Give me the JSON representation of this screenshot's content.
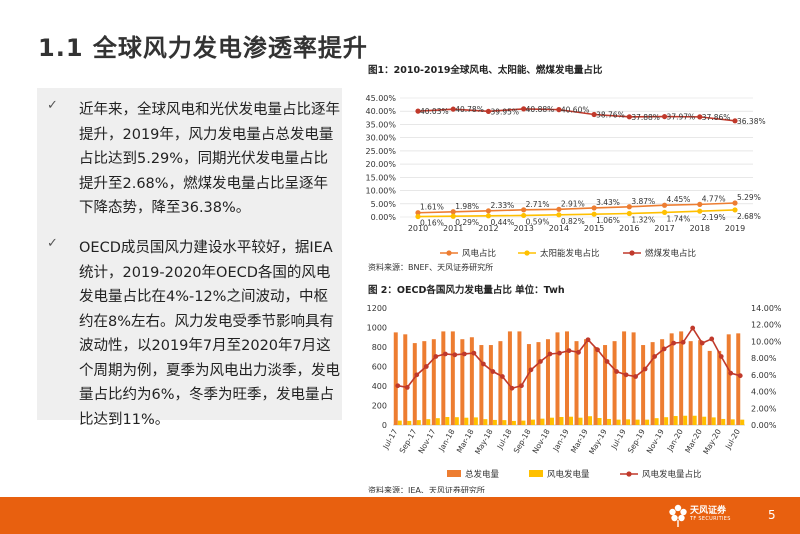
{
  "slide": {
    "title": "1.1 全球风力发电渗透率提升",
    "page_number": "5",
    "logo_text": "天风证券",
    "logo_sub": "TF SECURITIES"
  },
  "bullets": [
    {
      "mark": "✓",
      "text": "近年来，全球风电和光伏发电量占比逐年提升，2019年，风力发电量占总发电量占比达到5.29%，同期光伏发电量占比提升至2.68%，燃煤发电量占比呈逐年下降态势，降至36.38%。"
    },
    {
      "mark": "✓",
      "text": "OECD成员国风力建设水平较好，据IEA统计，2019-2020年OECD各国的风电发电量占比在4%-12%之间波动，中枢约在8%左右。风力发电受季节影响具有波动性，以2019年7月至2020年7月这个周期为例，夏季为风电出力淡季，发电量占比约为6%，冬季为旺季，发电量占比达到11%。"
    }
  ],
  "figure1": {
    "title": "图1：2010-2019全球风电、太阳能、燃煤发电量占比",
    "source": "资料来源：BNEF、天风证券研究所"
  },
  "figure2": {
    "title": "图 2：OECD各国风力发电量占比 单位：Twh",
    "source": "资料来源：IEA、天风证券研究所"
  },
  "chart_data": [
    {
      "type": "line",
      "x": [
        "2010",
        "2011",
        "2012",
        "2013",
        "2014",
        "2015",
        "2016",
        "2017",
        "2018",
        "2019"
      ],
      "ylim": [
        0,
        45
      ],
      "yticks": [
        "0.00%",
        "5.00%",
        "10.00%",
        "15.00%",
        "20.00%",
        "25.00%",
        "30.00%",
        "35.00%",
        "40.00%",
        "45.00%"
      ],
      "legend_position": "bottom",
      "series": [
        {
          "name": "风电占比",
          "color": "#ed7d31",
          "values": [
            1.61,
            1.98,
            2.33,
            2.71,
            2.91,
            3.43,
            3.87,
            4.45,
            4.77,
            5.29
          ],
          "labels": [
            "1.61%",
            "1.98%",
            "2.33%",
            "2.71%",
            "2.91%",
            "3.43%",
            "3.87%",
            "4.45%",
            "4.77%",
            "5.29%"
          ]
        },
        {
          "name": "太阳能发电占比",
          "color": "#ffc000",
          "values": [
            0.16,
            0.29,
            0.44,
            0.59,
            0.82,
            1.06,
            1.32,
            1.74,
            2.19,
            2.68
          ],
          "labels": [
            "0.16%",
            "0.29%",
            "0.44%",
            "0.59%",
            "0.82%",
            "1.06%",
            "1.32%",
            "1.74%",
            "2.19%",
            "2.68%"
          ]
        },
        {
          "name": "燃煤发电占比",
          "color": "#c0392b",
          "values": [
            40.03,
            40.78,
            39.95,
            40.88,
            40.6,
            38.76,
            37.88,
            37.97,
            37.86,
            36.38
          ],
          "labels": [
            "40.03%",
            "40.78%",
            "39.95%",
            "40.88%",
            "40.60%",
            "38.76%",
            "37.88%",
            "37.97%",
            "37.86%",
            "36.38%"
          ]
        }
      ]
    },
    {
      "type": "bar",
      "x": [
        "Jul-17",
        "Aug-17",
        "Sep-17",
        "Oct-17",
        "Nov-17",
        "Dec-17",
        "Jan-18",
        "Feb-18",
        "Mar-18",
        "Apr-18",
        "May-18",
        "Jun-18",
        "Jul-18",
        "Aug-18",
        "Sep-18",
        "Oct-18",
        "Nov-18",
        "Dec-18",
        "Jan-19",
        "Feb-19",
        "Mar-19",
        "Apr-19",
        "May-19",
        "Jun-19",
        "Jul-19",
        "Aug-19",
        "Sep-19",
        "Oct-19",
        "Nov-19",
        "Dec-19",
        "Jan-20",
        "Feb-20",
        "Mar-20",
        "Apr-20",
        "May-20",
        "Jun-20",
        "Jul-20"
      ],
      "xtick_labels": [
        "Jul-17",
        "Sep-17",
        "Nov-17",
        "Jan-18",
        "Mar-18",
        "May-18",
        "Jul-18",
        "Sep-18",
        "Nov-18",
        "Jan-19",
        "Mar-19",
        "May-19",
        "Jul-19",
        "Sep-19",
        "Nov-19",
        "Jan-20",
        "Mar-20",
        "May-20",
        "Jul-20"
      ],
      "ylim": [
        0,
        1200
      ],
      "yticks": [
        "0",
        "200",
        "400",
        "600",
        "800",
        "1000",
        "1200"
      ],
      "y2lim": [
        0,
        14
      ],
      "y2ticks": [
        "0.00%",
        "2.00%",
        "4.00%",
        "6.00%",
        "8.00%",
        "10.00%",
        "12.00%",
        "14.00%"
      ],
      "legend_position": "bottom",
      "series": [
        {
          "name": "总发电量",
          "color": "#ed7d31",
          "axis": "left",
          "values": [
            950,
            930,
            840,
            860,
            880,
            960,
            960,
            880,
            900,
            820,
            820,
            860,
            960,
            960,
            830,
            850,
            880,
            950,
            960,
            860,
            880,
            800,
            820,
            860,
            960,
            950,
            820,
            850,
            880,
            940,
            960,
            860,
            870,
            760,
            760,
            930,
            940
          ]
        },
        {
          "name": "风电发电量",
          "color": "#ffc000",
          "axis": "left",
          "values": [
            45,
            42,
            50,
            60,
            70,
            82,
            80,
            75,
            78,
            60,
            52,
            50,
            42,
            45,
            55,
            65,
            75,
            82,
            85,
            75,
            90,
            72,
            62,
            55,
            58,
            55,
            55,
            70,
            80,
            92,
            95,
            95,
            85,
            78,
            62,
            58,
            55
          ]
        },
        {
          "name": "风电发电量占比",
          "color": "#c0392b",
          "axis": "right",
          "values": [
            4.7,
            4.5,
            6.0,
            7.0,
            8.2,
            8.5,
            8.4,
            8.5,
            8.6,
            7.3,
            6.4,
            5.8,
            4.4,
            4.7,
            6.6,
            7.6,
            8.5,
            8.6,
            8.9,
            8.7,
            10.2,
            9.0,
            7.6,
            6.4,
            6.0,
            5.8,
            6.7,
            8.2,
            9.1,
            9.8,
            9.9,
            11.6,
            9.8,
            10.3,
            8.2,
            6.2,
            5.9
          ]
        }
      ]
    }
  ]
}
